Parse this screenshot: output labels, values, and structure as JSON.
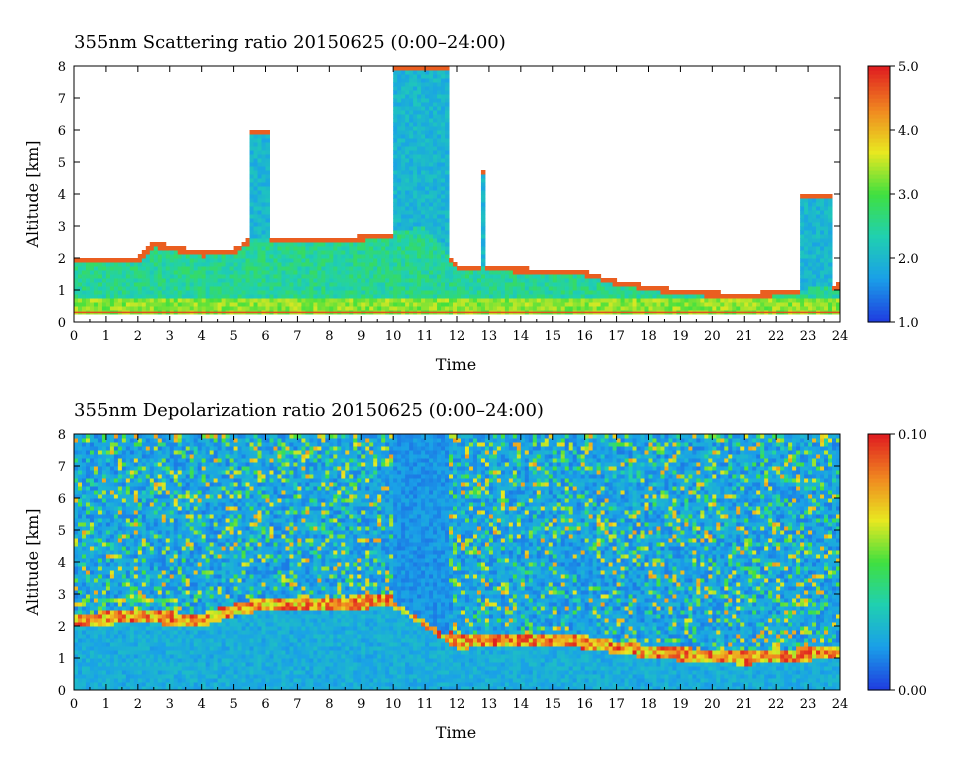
{
  "charts": [
    {
      "title": "355nm Scattering ratio  20150625 (0:00–24:00)",
      "xlabel": "Time",
      "ylabel": "Altitude [km]",
      "colorbar_labels": [
        "5.0",
        "4.0",
        "3.0",
        "2.0",
        "1.0"
      ]
    },
    {
      "title": "355nm Depolarization ratio  20150625 (0:00–24:00)",
      "xlabel": "Time",
      "ylabel": "Altitude [km]",
      "colorbar_labels": [
        "0.10",
        "0.00"
      ]
    }
  ],
  "chart_data": [
    {
      "type": "heatmap",
      "title": "355nm Scattering ratio  20150625 (0:00–24:00)",
      "xlabel": "Time",
      "ylabel": "Altitude [km]",
      "xlim": [
        0,
        24
      ],
      "ylim": [
        0,
        8
      ],
      "xticks": [
        "0",
        "1",
        "2",
        "3",
        "4",
        "5",
        "6",
        "7",
        "8",
        "9",
        "10",
        "11",
        "12",
        "13",
        "14",
        "15",
        "16",
        "17",
        "18",
        "19",
        "20",
        "21",
        "22",
        "23",
        "24"
      ],
      "yticks": [
        "0",
        "1",
        "2",
        "3",
        "4",
        "5",
        "6",
        "7",
        "8"
      ],
      "colorbar": {
        "min": 1.0,
        "max": 5.0,
        "ticks": [
          1.0,
          2.0,
          3.0,
          4.0,
          5.0
        ],
        "colors": [
          "#1f3fe0",
          "#1aa0e8",
          "#20d0b0",
          "#40e040",
          "#e8e820",
          "#f08820",
          "#e02020"
        ]
      },
      "features": {
        "boundary_layer_top_km": [
          {
            "t": 0.0,
            "h": 2.0
          },
          {
            "t": 2.0,
            "h": 2.0
          },
          {
            "t": 2.5,
            "h": 2.5
          },
          {
            "t": 4.0,
            "h": 2.2
          },
          {
            "t": 5.0,
            "h": 2.3
          },
          {
            "t": 5.5,
            "h": 2.6
          },
          {
            "t": 7.0,
            "h": 2.6
          },
          {
            "t": 8.0,
            "h": 2.6
          },
          {
            "t": 9.0,
            "h": 2.7
          },
          {
            "t": 10.0,
            "h": 2.8
          },
          {
            "t": 11.0,
            "h": 3.0
          },
          {
            "t": 12.0,
            "h": 1.8
          },
          {
            "t": 14.0,
            "h": 1.7
          },
          {
            "t": 16.0,
            "h": 1.6
          },
          {
            "t": 17.0,
            "h": 1.3
          },
          {
            "t": 19.0,
            "h": 1.0
          },
          {
            "t": 21.0,
            "h": 0.9
          },
          {
            "t": 22.5,
            "h": 1.0
          },
          {
            "t": 24.0,
            "h": 1.2
          }
        ],
        "columns": [
          {
            "t0": 5.5,
            "t1": 6.1,
            "top": 6.0
          },
          {
            "t0": 10.0,
            "t1": 11.7,
            "top": 8.0
          },
          {
            "t0": 12.7,
            "t1": 12.9,
            "top": 4.8
          },
          {
            "t0": 22.7,
            "t1": 23.8,
            "top": 4.0
          }
        ]
      }
    },
    {
      "type": "heatmap",
      "title": "355nm Depolarization ratio  20150625 (0:00–24:00)",
      "xlabel": "Time",
      "ylabel": "Altitude [km]",
      "xlim": [
        0,
        24
      ],
      "ylim": [
        0,
        8
      ],
      "xticks": [
        "0",
        "1",
        "2",
        "3",
        "4",
        "5",
        "6",
        "7",
        "8",
        "9",
        "10",
        "11",
        "12",
        "13",
        "14",
        "15",
        "16",
        "17",
        "18",
        "19",
        "20",
        "21",
        "22",
        "23",
        "24"
      ],
      "yticks": [
        "0",
        "1",
        "2",
        "3",
        "4",
        "5",
        "6",
        "7",
        "8"
      ],
      "colorbar": {
        "min": 0.0,
        "max": 0.1,
        "ticks": [
          0.0,
          0.1
        ],
        "colors": [
          "#1f3fe0",
          "#1aa0e8",
          "#20d0b0",
          "#40e040",
          "#e8e820",
          "#f08820",
          "#e02020"
        ]
      },
      "features": {
        "aerosol_layer_top_km": [
          {
            "t": 0.0,
            "h": 2.2
          },
          {
            "t": 2.0,
            "h": 2.3
          },
          {
            "t": 4.0,
            "h": 2.2
          },
          {
            "t": 5.0,
            "h": 2.5
          },
          {
            "t": 6.0,
            "h": 2.7
          },
          {
            "t": 8.0,
            "h": 2.7
          },
          {
            "t": 10.0,
            "h": 2.8
          },
          {
            "t": 12.0,
            "h": 1.5
          },
          {
            "t": 15.0,
            "h": 1.6
          },
          {
            "t": 16.0,
            "h": 1.5
          },
          {
            "t": 18.0,
            "h": 1.2
          },
          {
            "t": 21.0,
            "h": 1.0
          },
          {
            "t": 24.0,
            "h": 1.2
          }
        ]
      }
    }
  ]
}
